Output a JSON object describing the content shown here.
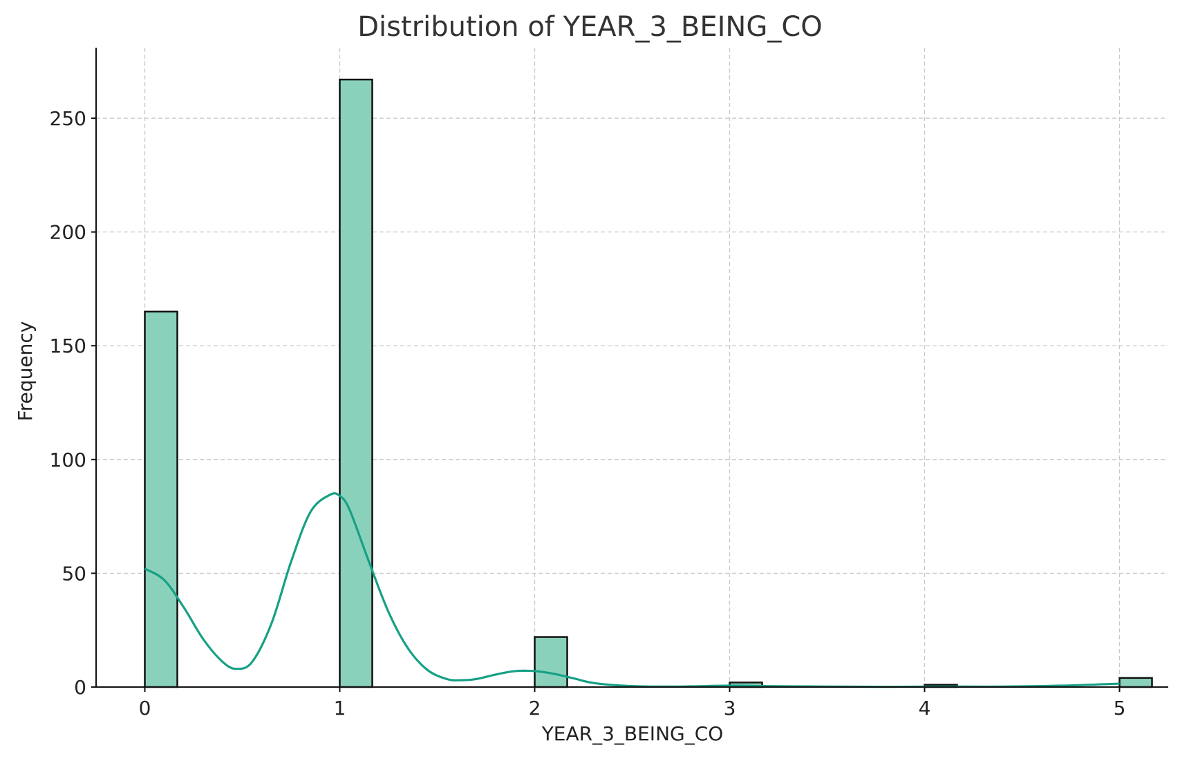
{
  "chart_data": {
    "type": "bar",
    "title": "Distribution of YEAR_3_BEING_CO",
    "xlabel": "YEAR_3_BEING_CO",
    "ylabel": "Frequency",
    "xlim": [
      -0.25,
      5.25
    ],
    "ylim": [
      0,
      281
    ],
    "x_ticks": [
      0,
      1,
      2,
      3,
      4,
      5
    ],
    "y_ticks": [
      0,
      50,
      100,
      150,
      200,
      250
    ],
    "grid": true,
    "bar_color": "#8ad1bc",
    "kde_color": "#16a085",
    "bin_width": 0.1667,
    "bins": [
      {
        "x": 0,
        "count": 165
      },
      {
        "x": 1,
        "count": 267
      },
      {
        "x": 2,
        "count": 22
      },
      {
        "x": 3,
        "count": 2
      },
      {
        "x": 4,
        "count": 1
      },
      {
        "x": 5,
        "count": 4
      }
    ],
    "kde": {
      "x": [
        0,
        0.1,
        0.2,
        0.3,
        0.4,
        0.47,
        0.55,
        0.65,
        0.75,
        0.85,
        0.95,
        1.0,
        1.05,
        1.15,
        1.25,
        1.35,
        1.45,
        1.55,
        1.62,
        1.7,
        1.8,
        1.9,
        2.0,
        2.1,
        2.2,
        2.3,
        2.45,
        2.6,
        2.8,
        3.0,
        3.2,
        3.5,
        3.8,
        4.1,
        4.4,
        4.7,
        5.0
      ],
      "y": [
        52,
        47,
        35,
        21,
        11,
        8,
        11,
        28,
        55,
        77,
        84.5,
        84,
        78,
        55,
        33,
        17,
        7.5,
        3.5,
        3,
        3.5,
        5.5,
        7,
        7,
        5.8,
        3.8,
        1.8,
        0.6,
        0.2,
        0.3,
        0.6,
        0.4,
        0.2,
        0.1,
        0.2,
        0.2,
        0.6,
        1.5
      ]
    }
  }
}
